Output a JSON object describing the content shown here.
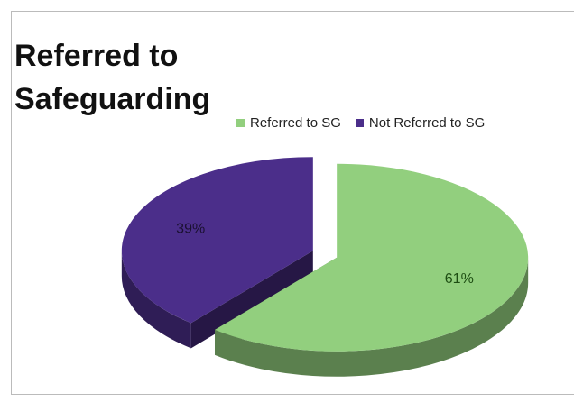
{
  "chart_data": {
    "type": "pie",
    "title": "Referred to Safeguarding",
    "categories": [
      "Referred to SG",
      "Not Referred to SG"
    ],
    "values": [
      61,
      39
    ],
    "value_labels": [
      "61%",
      "39%"
    ],
    "colors": [
      "#92cf7e",
      "#4b2e8a"
    ],
    "legend": "top"
  }
}
